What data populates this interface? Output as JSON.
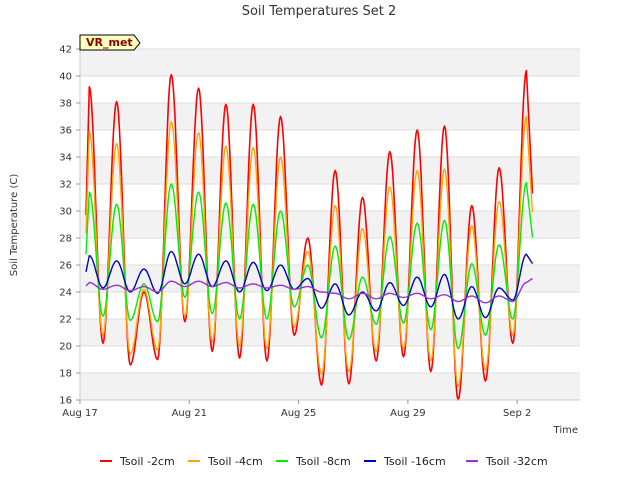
{
  "chart_data": {
    "type": "line",
    "title": "Soil Temperatures Set 2",
    "xlabel": "Time",
    "ylabel": "Soil Temperature (C)",
    "badge": "VR_met",
    "ylim": [
      16,
      42
    ],
    "yticks": [
      16,
      18,
      20,
      22,
      24,
      26,
      28,
      30,
      32,
      34,
      36,
      38,
      40,
      42
    ],
    "xlim": [
      0,
      18.3
    ],
    "xticks": [
      {
        "label": "Aug 17",
        "day": 0
      },
      {
        "label": "Aug 21",
        "day": 4
      },
      {
        "label": "Aug 25",
        "day": 8
      },
      {
        "label": "Aug 29",
        "day": 12
      },
      {
        "label": "Sep 2",
        "day": 16
      }
    ],
    "grid": true,
    "legend_position": "bottom",
    "x_unit": "days since Aug 17 (daily max/min)",
    "series": [
      {
        "name": "Tsoil -2cm",
        "color": "#ff0000",
        "width": 1.6,
        "max": [
          39.2,
          38.1,
          24.0,
          40.1,
          39.1,
          37.9,
          37.9,
          37.0,
          28.0,
          33.0,
          31.0,
          34.4,
          36.0,
          36.3,
          30.4,
          33.2,
          40.4
        ],
        "min": [
          20.2,
          18.6,
          19.0,
          21.8,
          19.6,
          19.1,
          18.9,
          20.8,
          17.1,
          17.2,
          18.9,
          19.2,
          18.1,
          16.0,
          17.4,
          20.2
        ]
      },
      {
        "name": "Tsoil -4cm",
        "color": "#ffa500",
        "width": 1.4,
        "max": [
          35.9,
          35.0,
          24.2,
          36.6,
          35.8,
          34.8,
          34.7,
          34.0,
          27.0,
          30.4,
          28.7,
          31.8,
          33.0,
          33.1,
          28.9,
          30.7,
          37.0
        ],
        "min": [
          20.8,
          19.4,
          19.7,
          22.2,
          20.3,
          20.0,
          19.8,
          21.4,
          17.9,
          18.1,
          19.6,
          19.8,
          18.9,
          17.0,
          18.2,
          20.8
        ]
      },
      {
        "name": "Tsoil -8cm",
        "color": "#00ee00",
        "width": 1.4,
        "max": [
          31.4,
          30.5,
          24.6,
          32.0,
          31.4,
          30.6,
          30.5,
          30.0,
          26.0,
          27.4,
          25.1,
          28.1,
          29.1,
          29.3,
          26.1,
          27.5,
          32.1
        ],
        "min": [
          22.2,
          21.9,
          21.8,
          23.6,
          22.4,
          22.0,
          22.0,
          22.9,
          20.6,
          20.5,
          21.6,
          21.7,
          21.2,
          19.8,
          20.8,
          22.0
        ]
      },
      {
        "name": "Tsoil -16cm",
        "color": "#0000cc",
        "width": 1.4,
        "max": [
          26.7,
          26.3,
          25.7,
          27.0,
          26.8,
          26.3,
          26.2,
          26.0,
          25.0,
          24.6,
          24.0,
          24.7,
          25.1,
          25.3,
          24.4,
          24.3,
          26.8
        ],
        "min": [
          24.3,
          24.0,
          23.9,
          24.6,
          24.4,
          24.0,
          24.1,
          24.2,
          22.8,
          22.3,
          22.6,
          23.0,
          22.9,
          22.0,
          22.1,
          23.4
        ]
      },
      {
        "name": "Tsoil -32cm",
        "color": "#9932cc",
        "width": 1.4,
        "max": [
          24.7,
          24.5,
          24.4,
          24.8,
          24.8,
          24.7,
          24.6,
          24.5,
          24.4,
          23.9,
          23.9,
          23.9,
          23.9,
          23.8,
          23.7,
          23.7,
          24.7
        ],
        "min": [
          24.2,
          24.1,
          24.0,
          24.4,
          24.4,
          24.3,
          24.3,
          24.2,
          24.0,
          23.5,
          23.5,
          23.6,
          23.5,
          23.3,
          23.2,
          23.3
        ]
      }
    ]
  }
}
